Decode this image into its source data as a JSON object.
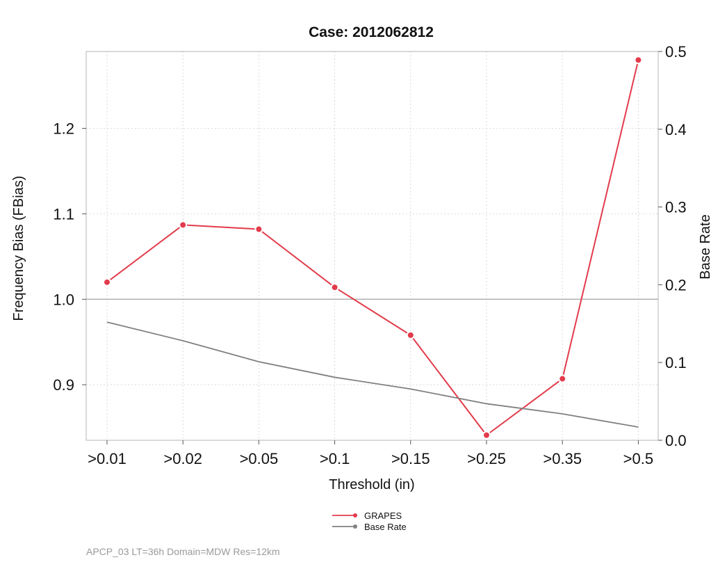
{
  "chart_data": {
    "type": "line",
    "title": "Case: 2012062812",
    "xlabel": "Threshold (in)",
    "ylabel": "Frequency Bias (FBias)",
    "y2label": "Base Rate",
    "categories": [
      ">0.01",
      ">0.02",
      ">0.05",
      ">0.1",
      ">0.15",
      ">0.25",
      ">0.35",
      ">0.5"
    ],
    "ylim": [
      0.835,
      1.29
    ],
    "yticks": [
      0.9,
      1.0,
      1.1,
      1.2
    ],
    "ytick_labels": [
      "0.9",
      "1.0",
      "1.1",
      "1.2"
    ],
    "y2lim": [
      0.0,
      0.5
    ],
    "y2ticks": [
      0.0,
      0.1,
      0.2,
      0.3,
      0.4,
      0.5
    ],
    "y2tick_labels": [
      "0.0",
      "0.1",
      "0.2",
      "0.3",
      "0.4",
      "0.5"
    ],
    "reference_line": 1.0,
    "grid": true,
    "series": [
      {
        "name": "GRAPES",
        "axis": "left",
        "color": "#e23b4b",
        "markers": true,
        "values": [
          1.02,
          1.087,
          1.082,
          1.014,
          0.958,
          0.841,
          0.907,
          1.28
        ]
      },
      {
        "name": "Base Rate",
        "axis": "right",
        "color": "#808080",
        "markers": false,
        "values": [
          0.152,
          0.128,
          0.101,
          0.081,
          0.066,
          0.047,
          0.034,
          0.017
        ]
      }
    ],
    "legend_position": "bottom-center"
  },
  "footer": "APCP_03  LT=36h  Domain=MDW  Res=12km"
}
